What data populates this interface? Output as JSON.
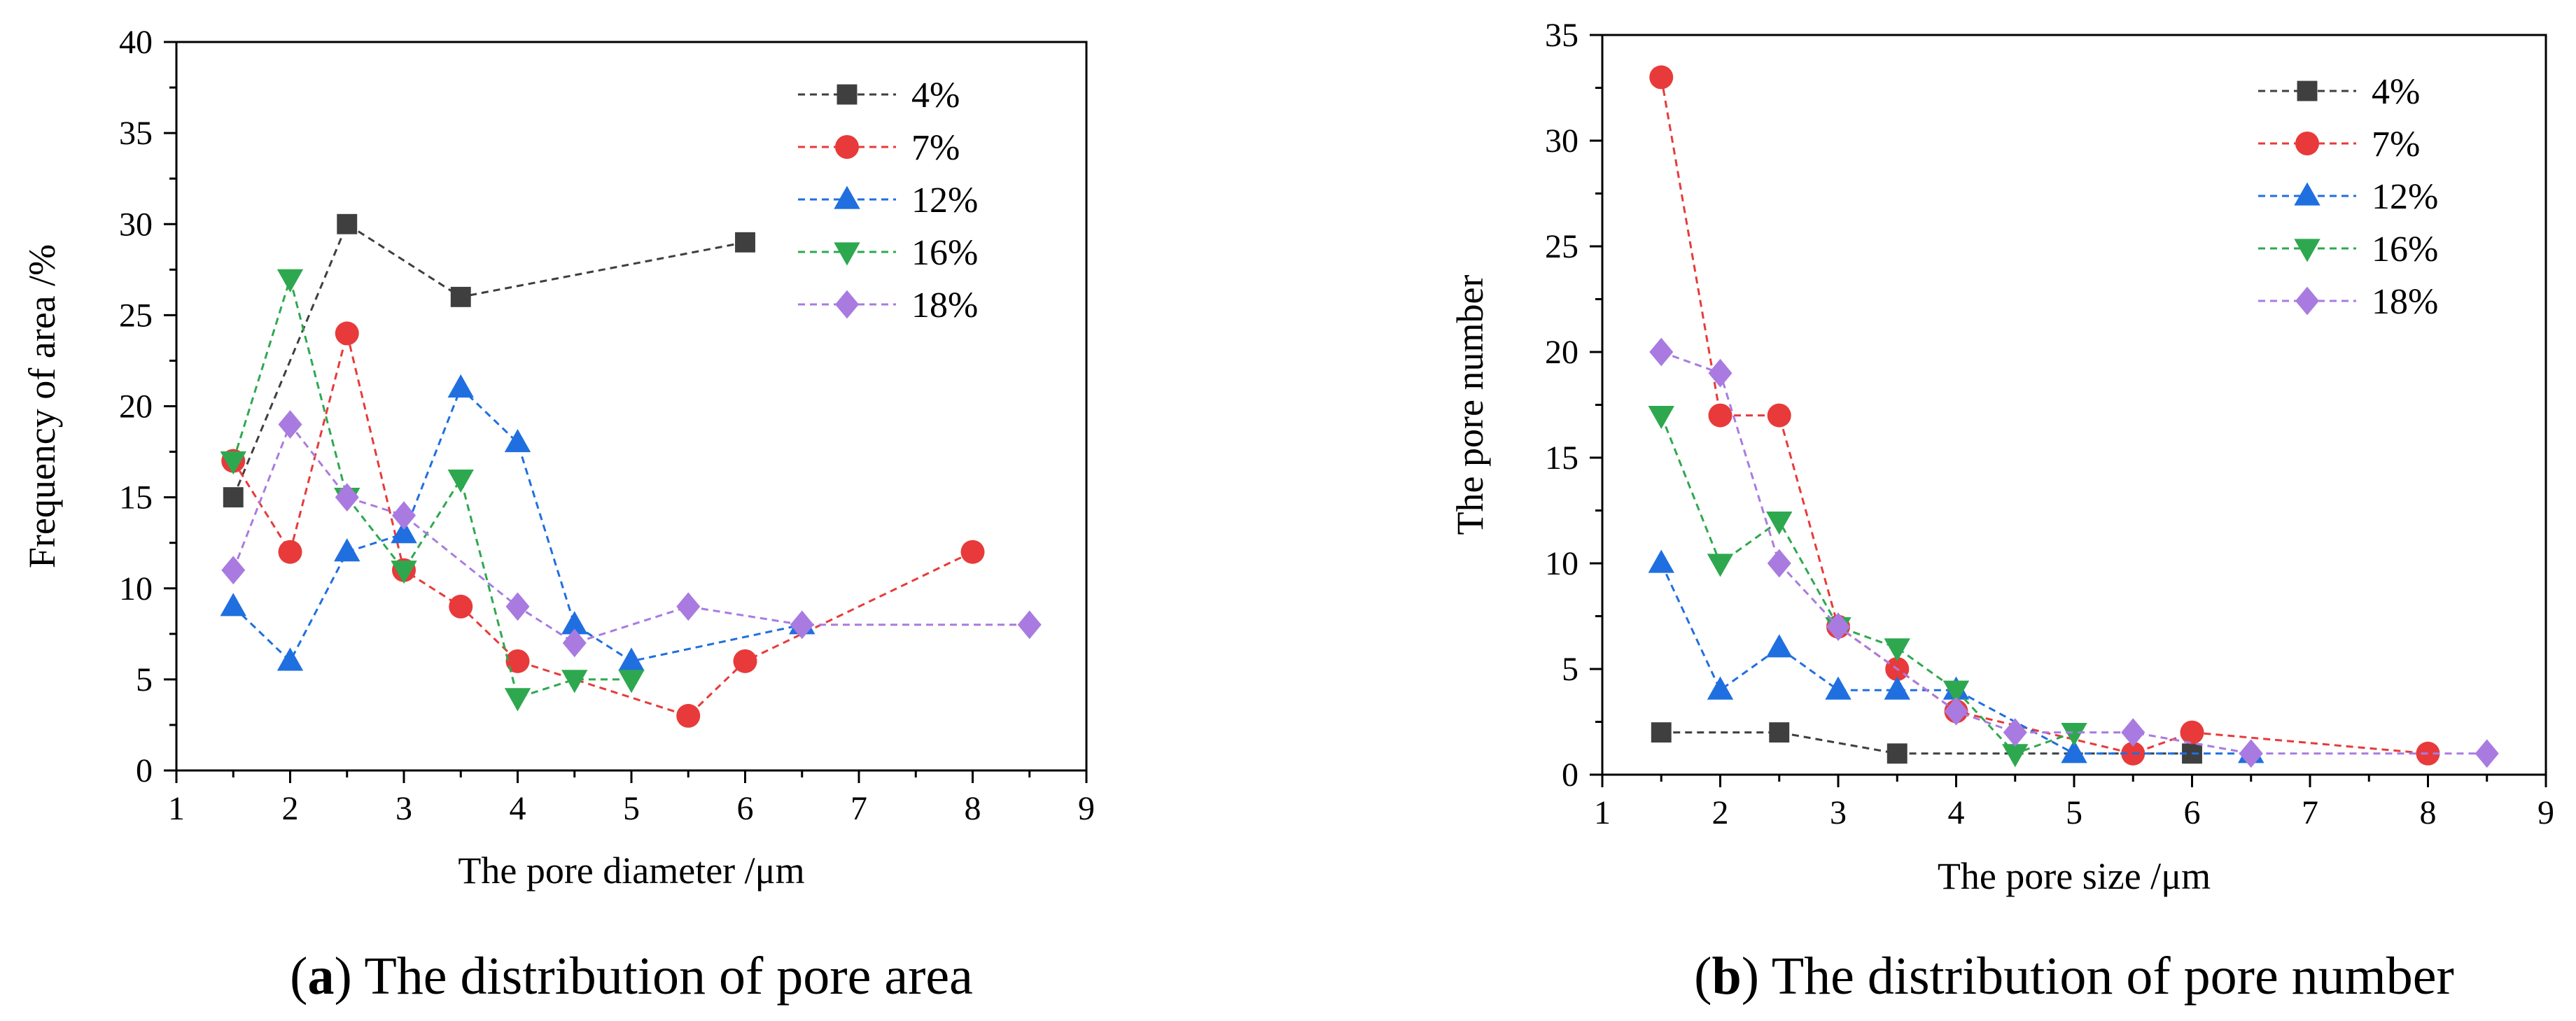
{
  "chart_data": [
    {
      "type": "line",
      "caption_letter": "a",
      "caption_text": "The distribution of pore area",
      "xlabel": "The pore diameter /μm",
      "ylabel": "Frequency of area  /%",
      "xlim": [
        1,
        9
      ],
      "ylim": [
        0,
        40
      ],
      "xticks": [
        1,
        2,
        3,
        4,
        5,
        6,
        7,
        8,
        9
      ],
      "yticks": [
        0,
        5,
        10,
        15,
        20,
        25,
        30,
        35,
        40
      ],
      "legend_position": "top-right",
      "series": [
        {
          "name": "4%",
          "color": "#3f3f3f",
          "marker": "square",
          "x": [
            1.5,
            2.5,
            3.5,
            6
          ],
          "y": [
            15,
            30,
            26,
            29
          ]
        },
        {
          "name": "7%",
          "color": "#e83a3a",
          "marker": "circle",
          "x": [
            1.5,
            2,
            2.5,
            3,
            3.5,
            4,
            5.5,
            6,
            8
          ],
          "y": [
            17,
            12,
            24,
            11,
            9,
            6,
            3,
            6,
            12
          ]
        },
        {
          "name": "12%",
          "color": "#1f6fe0",
          "marker": "triangle-up",
          "x": [
            1.5,
            2,
            2.5,
            3,
            3.5,
            4,
            4.5,
            5,
            6.5
          ],
          "y": [
            9,
            6,
            12,
            13,
            21,
            18,
            8,
            6,
            8
          ]
        },
        {
          "name": "16%",
          "color": "#2ea84f",
          "marker": "triangle-down",
          "x": [
            1.5,
            2,
            2.5,
            3,
            3.5,
            4,
            4.5,
            5
          ],
          "y": [
            17,
            27,
            15,
            11,
            16,
            4,
            5,
            5
          ]
        },
        {
          "name": "18%",
          "color": "#a97be0",
          "marker": "diamond",
          "x": [
            1.5,
            2,
            2.5,
            3,
            4,
            4.5,
            5.5,
            6.5,
            8.5
          ],
          "y": [
            11,
            19,
            15,
            14,
            9,
            7,
            9,
            8,
            8
          ]
        }
      ]
    },
    {
      "type": "line",
      "caption_letter": "b",
      "caption_text": "The distribution of pore number",
      "xlabel": "The pore size /μm",
      "ylabel": "The pore number",
      "xlim": [
        1,
        9
      ],
      "ylim": [
        0,
        35
      ],
      "xticks": [
        1,
        2,
        3,
        4,
        5,
        6,
        7,
        8,
        9
      ],
      "yticks": [
        0,
        5,
        10,
        15,
        20,
        25,
        30,
        35
      ],
      "legend_position": "top-right",
      "series": [
        {
          "name": "4%",
          "color": "#3f3f3f",
          "marker": "square",
          "x": [
            1.5,
            2.5,
            3.5,
            6
          ],
          "y": [
            2,
            2,
            1,
            1
          ]
        },
        {
          "name": "7%",
          "color": "#e83a3a",
          "marker": "circle",
          "x": [
            1.5,
            2,
            2.5,
            3,
            3.5,
            4,
            5.5,
            6,
            8
          ],
          "y": [
            33,
            17,
            17,
            7,
            5,
            3,
            1,
            2,
            1
          ]
        },
        {
          "name": "12%",
          "color": "#1f6fe0",
          "marker": "triangle-up",
          "x": [
            1.5,
            2,
            2.5,
            3,
            3.5,
            4,
            5,
            6.5
          ],
          "y": [
            10,
            4,
            6,
            4,
            4,
            4,
            1,
            1
          ]
        },
        {
          "name": "16%",
          "color": "#2ea84f",
          "marker": "triangle-down",
          "x": [
            1.5,
            2,
            2.5,
            3,
            3.5,
            4,
            4.5,
            5
          ],
          "y": [
            17,
            10,
            12,
            7,
            6,
            4,
            1,
            2
          ]
        },
        {
          "name": "18%",
          "color": "#a97be0",
          "marker": "diamond",
          "x": [
            1.5,
            2,
            2.5,
            3,
            4,
            4.5,
            5.5,
            6.5,
            8.5
          ],
          "y": [
            20,
            19,
            10,
            7,
            3,
            2,
            2,
            1,
            1
          ]
        }
      ]
    }
  ]
}
